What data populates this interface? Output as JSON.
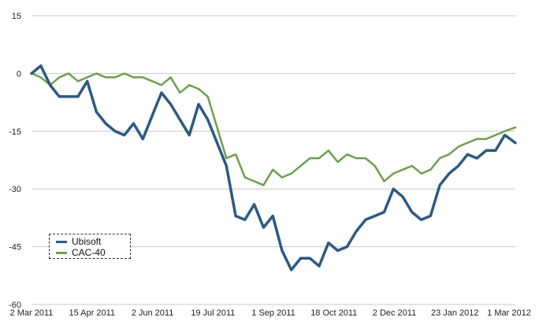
{
  "chart_data": {
    "type": "line",
    "title": "",
    "xlabel": "",
    "ylabel": "",
    "ylim": [
      -60,
      15
    ],
    "yticks": [
      15,
      0,
      -15,
      -30,
      -45,
      -60
    ],
    "grid": true,
    "legend": "bottom-left",
    "x_tick_labels": [
      "2 Mar 2011",
      "15 Apr 2011",
      "2 Jun 2011",
      "19 Jul 2011",
      "1 Sep 2011",
      "18 Oct 2011",
      "2 Dec 2011",
      "23 Jan 2012",
      "1 Mar 2012"
    ],
    "x": [
      "2011-03-02",
      "2011-03-09",
      "2011-03-16",
      "2011-03-23",
      "2011-03-30",
      "2011-04-06",
      "2011-04-13",
      "2011-04-20",
      "2011-04-27",
      "2011-05-04",
      "2011-05-11",
      "2011-05-18",
      "2011-05-25",
      "2011-06-01",
      "2011-06-08",
      "2011-06-15",
      "2011-06-22",
      "2011-06-29",
      "2011-07-06",
      "2011-07-13",
      "2011-07-20",
      "2011-07-27",
      "2011-08-03",
      "2011-08-10",
      "2011-08-17",
      "2011-08-24",
      "2011-08-31",
      "2011-09-07",
      "2011-09-14",
      "2011-09-21",
      "2011-09-28",
      "2011-10-05",
      "2011-10-12",
      "2011-10-19",
      "2011-10-26",
      "2011-11-02",
      "2011-11-09",
      "2011-11-16",
      "2011-11-23",
      "2011-11-30",
      "2011-12-07",
      "2011-12-14",
      "2011-12-21",
      "2011-12-28",
      "2012-01-04",
      "2012-01-11",
      "2012-01-18",
      "2012-01-25",
      "2012-02-01",
      "2012-02-08",
      "2012-02-15",
      "2012-02-22",
      "2012-03-01"
    ],
    "series": [
      {
        "name": "Ubisoft",
        "color": "#2b5a87",
        "values": [
          0,
          2,
          -3,
          -6,
          -6,
          -6,
          -2,
          -10,
          -13,
          -15,
          -16,
          -13,
          -17,
          -11,
          -5,
          -8,
          -12,
          -16,
          -8,
          -12,
          -18,
          -24,
          -37,
          -38,
          -34,
          -40,
          -37,
          -46,
          -51,
          -48,
          -48,
          -50,
          -44,
          -46,
          -45,
          -41,
          -38,
          -37,
          -36,
          -30,
          -32,
          -36,
          -38,
          -37,
          -29,
          -26,
          -24,
          -21,
          -22,
          -20,
          -20,
          -16,
          -18
        ]
      },
      {
        "name": "CAC-40",
        "color": "#6aa24a",
        "values": [
          0,
          -1,
          -3,
          -1,
          0,
          -2,
          -1,
          0,
          -1,
          -1,
          0,
          -1,
          -1,
          -2,
          -3,
          -1,
          -5,
          -3,
          -4,
          -6,
          -14,
          -22,
          -21,
          -27,
          -28,
          -29,
          -25,
          -27,
          -26,
          -24,
          -22,
          -22,
          -20,
          -23,
          -21,
          -22,
          -22,
          -24,
          -28,
          -26,
          -25,
          -24,
          -26,
          -25,
          -22,
          -21,
          -19,
          -18,
          -17,
          -17,
          -16,
          -15,
          -14
        ]
      }
    ]
  }
}
